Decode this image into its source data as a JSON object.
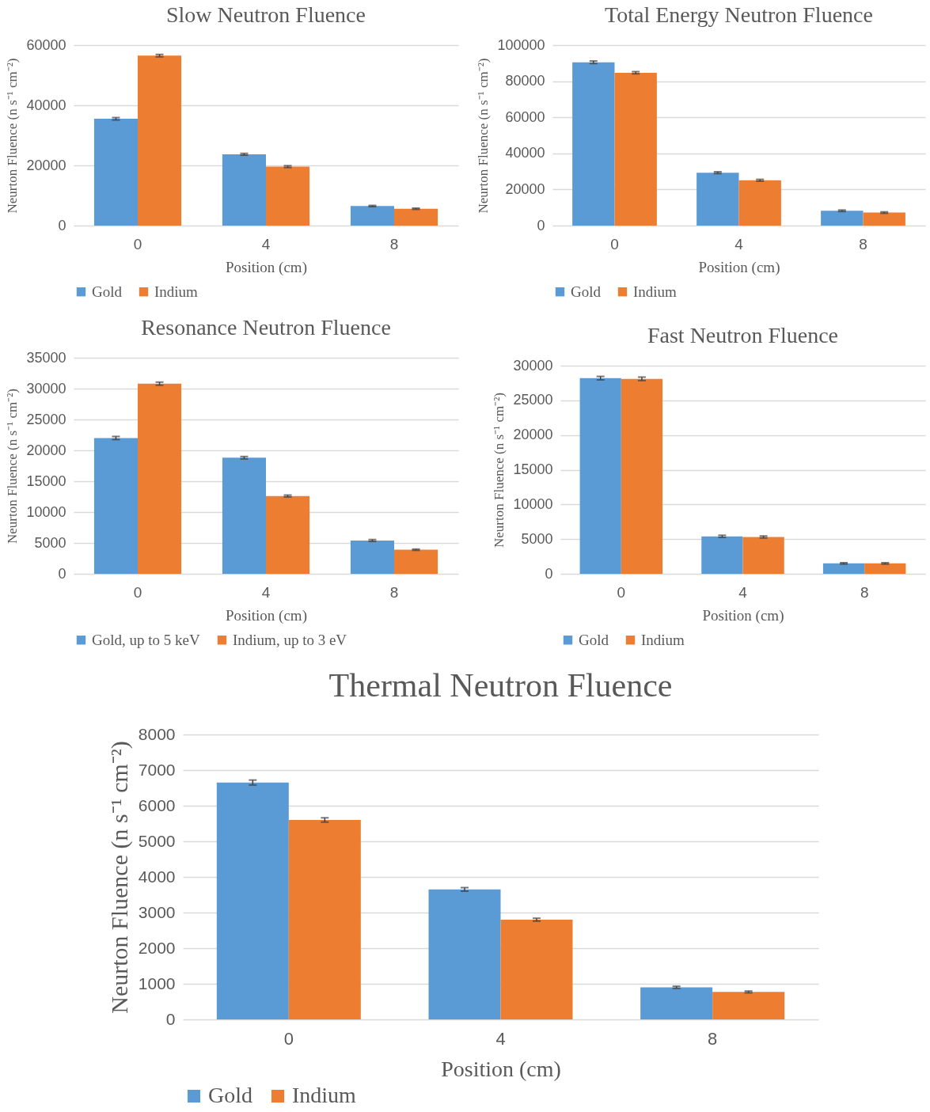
{
  "chart_data": [
    {
      "type": "bar",
      "title": "Slow Neutron Fluence",
      "xlabel": "Position (cm)",
      "ylabel": "Neurton Fluence (n s⁻¹ cm⁻²)",
      "categories": [
        "0",
        "4",
        "8"
      ],
      "ylim": [
        0,
        60000
      ],
      "yticks": [
        0,
        20000,
        40000,
        60000
      ],
      "grid": "y",
      "legend": "bottom",
      "series": [
        {
          "name": "Gold",
          "color": "#5b9bd5",
          "values": [
            35500,
            23700,
            6500
          ],
          "errors": [
            400,
            300,
            200
          ]
        },
        {
          "name": "Indium",
          "color": "#ed7d31",
          "values": [
            56500,
            19600,
            5600
          ],
          "errors": [
            400,
            300,
            200
          ]
        }
      ]
    },
    {
      "type": "bar",
      "title": "Total Energy Neutron Fluence",
      "xlabel": "Position (cm)",
      "ylabel": "Neurton Fluence (n s⁻¹ cm⁻²)",
      "categories": [
        "0",
        "4",
        "8"
      ],
      "ylim": [
        0,
        100000
      ],
      "yticks": [
        0,
        20000,
        40000,
        60000,
        80000,
        100000
      ],
      "grid": "y",
      "legend": "bottom",
      "series": [
        {
          "name": "Gold",
          "color": "#5b9bd5",
          "values": [
            90500,
            29300,
            8200
          ],
          "errors": [
            700,
            500,
            400
          ]
        },
        {
          "name": "Indium",
          "color": "#ed7d31",
          "values": [
            84700,
            25100,
            7200
          ],
          "errors": [
            600,
            500,
            400
          ]
        }
      ]
    },
    {
      "type": "bar",
      "title": "Resonance Neutron Fluence",
      "xlabel": "Position (cm)",
      "ylabel": "Neurton Fluence (n s⁻¹ cm⁻²)",
      "categories": [
        "0",
        "4",
        "8"
      ],
      "ylim": [
        0,
        35000
      ],
      "yticks": [
        0,
        5000,
        10000,
        15000,
        20000,
        25000,
        30000,
        35000
      ],
      "grid": "y",
      "legend": "bottom",
      "series": [
        {
          "name": "Gold, up to 5 keV",
          "color": "#5b9bd5",
          "values": [
            22000,
            18800,
            5400
          ],
          "errors": [
            250,
            200,
            150
          ]
        },
        {
          "name": "Indium, up to 3 eV",
          "color": "#ed7d31",
          "values": [
            30800,
            12600,
            3900
          ],
          "errors": [
            250,
            150,
            100
          ]
        }
      ]
    },
    {
      "type": "bar",
      "title": "Fast Neutron Fluence",
      "xlabel": "Position (cm)",
      "ylabel": "Neurton Fluence (n s⁻¹ cm⁻²)",
      "categories": [
        "0",
        "4",
        "8"
      ],
      "ylim": [
        0,
        30000
      ],
      "yticks": [
        0,
        5000,
        10000,
        15000,
        20000,
        25000,
        30000
      ],
      "grid": "y",
      "legend": "bottom",
      "series": [
        {
          "name": "Gold",
          "color": "#5b9bd5",
          "values": [
            28200,
            5400,
            1500
          ],
          "errors": [
            250,
            150,
            100
          ]
        },
        {
          "name": "Indium",
          "color": "#ed7d31",
          "values": [
            28100,
            5300,
            1500
          ],
          "errors": [
            250,
            150,
            100
          ]
        }
      ]
    },
    {
      "type": "bar",
      "title": "Thermal Neutron Fluence",
      "xlabel": "Position (cm)",
      "ylabel": "Neurton Fluence (n s⁻¹ cm⁻²)",
      "categories": [
        "0",
        "4",
        "8"
      ],
      "ylim": [
        0,
        8000
      ],
      "yticks": [
        0,
        1000,
        2000,
        3000,
        4000,
        5000,
        6000,
        7000,
        8000
      ],
      "grid": "y",
      "legend": "bottom",
      "series": [
        {
          "name": "Gold",
          "color": "#5b9bd5",
          "values": [
            6650,
            3650,
            900
          ],
          "errors": [
            70,
            50,
            30
          ]
        },
        {
          "name": "Indium",
          "color": "#ed7d31",
          "values": [
            5600,
            2800,
            770
          ],
          "errors": [
            60,
            40,
            25
          ]
        }
      ]
    }
  ]
}
